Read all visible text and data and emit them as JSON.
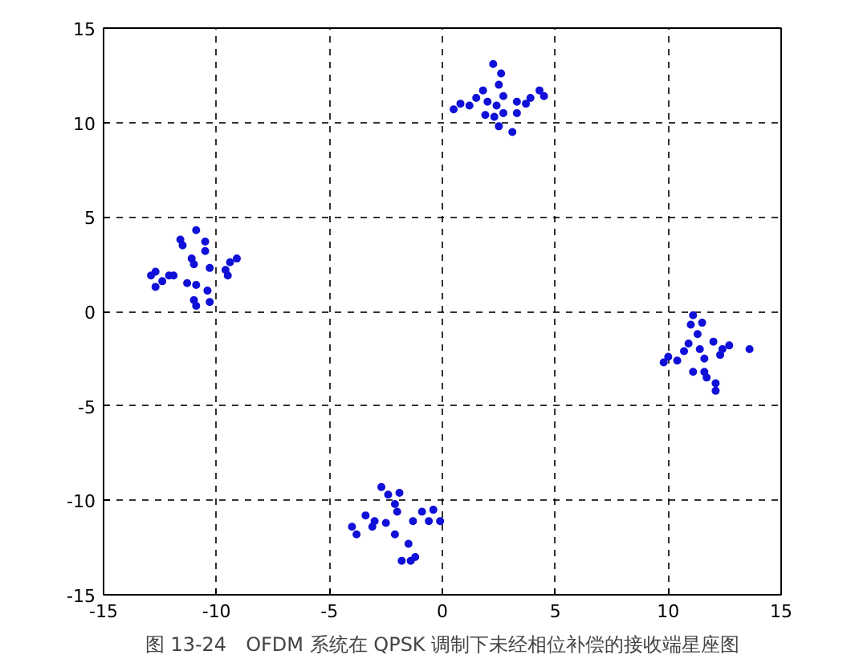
{
  "chart_data": {
    "type": "scatter",
    "marker": "circle",
    "grid": true,
    "xlim": [
      -15,
      15
    ],
    "ylim": [
      -15,
      15
    ],
    "xticks": [
      -15,
      -10,
      -5,
      0,
      5,
      10,
      15
    ],
    "yticks": [
      -15,
      -10,
      -5,
      0,
      5,
      10,
      15
    ],
    "annotations": [
      "图 13-24　OFDM 系统在 QPSK 调制下未经相位补偿的接收端星座图"
    ],
    "series": [
      {
        "color": "#1010d8",
        "x": [
          -10.9,
          -11.6,
          -11.5,
          -10.5,
          -10.5,
          -11.0,
          -10.3,
          -12.9,
          -12.7,
          -12.4,
          -12.7,
          -12.1,
          -11.9,
          -11.3,
          -10.9,
          -10.4,
          -11.0,
          -10.9,
          -10.3,
          -9.6,
          -9.4,
          -9.1,
          -9.5,
          -11.1,
          2.25,
          2.6,
          2.5,
          1.8,
          0.8,
          0.5,
          1.2,
          1.5,
          2.0,
          2.4,
          2.7,
          1.9,
          2.3,
          2.5,
          3.1,
          3.3,
          3.7,
          3.9,
          4.3,
          4.5,
          3.3,
          2.7,
          -2.7,
          -2.4,
          -1.9,
          -2.1,
          -2.0,
          -3.4,
          -3.0,
          -3.1,
          -4.0,
          -3.8,
          -2.5,
          -1.3,
          -0.9,
          -0.4,
          -0.6,
          -0.1,
          -2.1,
          -1.5,
          -1.8,
          -1.2,
          -1.4,
          11.1,
          11.0,
          11.5,
          11.3,
          10.9,
          10.7,
          10.0,
          9.8,
          10.4,
          12.0,
          12.4,
          12.7,
          12.3,
          11.6,
          11.1,
          11.6,
          11.7,
          12.1,
          12.1,
          13.6,
          11.4
        ],
        "values": [
          4.3,
          3.8,
          3.5,
          3.7,
          3.2,
          2.5,
          2.3,
          1.9,
          2.1,
          1.6,
          1.3,
          1.9,
          1.9,
          1.5,
          1.4,
          1.1,
          0.6,
          0.3,
          0.5,
          2.2,
          2.6,
          2.8,
          1.9,
          2.8,
          13.1,
          12.6,
          12.0,
          11.7,
          11.0,
          10.7,
          10.9,
          11.3,
          11.1,
          10.9,
          10.5,
          10.4,
          10.3,
          9.8,
          9.5,
          11.1,
          11.0,
          11.3,
          11.7,
          11.4,
          10.5,
          11.4,
          -9.3,
          -9.7,
          -9.6,
          -10.2,
          -10.6,
          -10.8,
          -11.1,
          -11.4,
          -11.4,
          -11.8,
          -11.2,
          -11.1,
          -10.6,
          -10.5,
          -11.1,
          -11.1,
          -11.8,
          -12.3,
          -13.2,
          -13.0,
          -13.2,
          -0.2,
          -0.7,
          -0.6,
          -1.2,
          -1.7,
          -2.1,
          -2.4,
          -2.7,
          -2.6,
          -1.6,
          -2.0,
          -1.8,
          -2.3,
          -2.5,
          -3.2,
          -3.2,
          -3.5,
          -3.8,
          -4.2,
          -2.0,
          -2.0
        ]
      }
    ]
  }
}
